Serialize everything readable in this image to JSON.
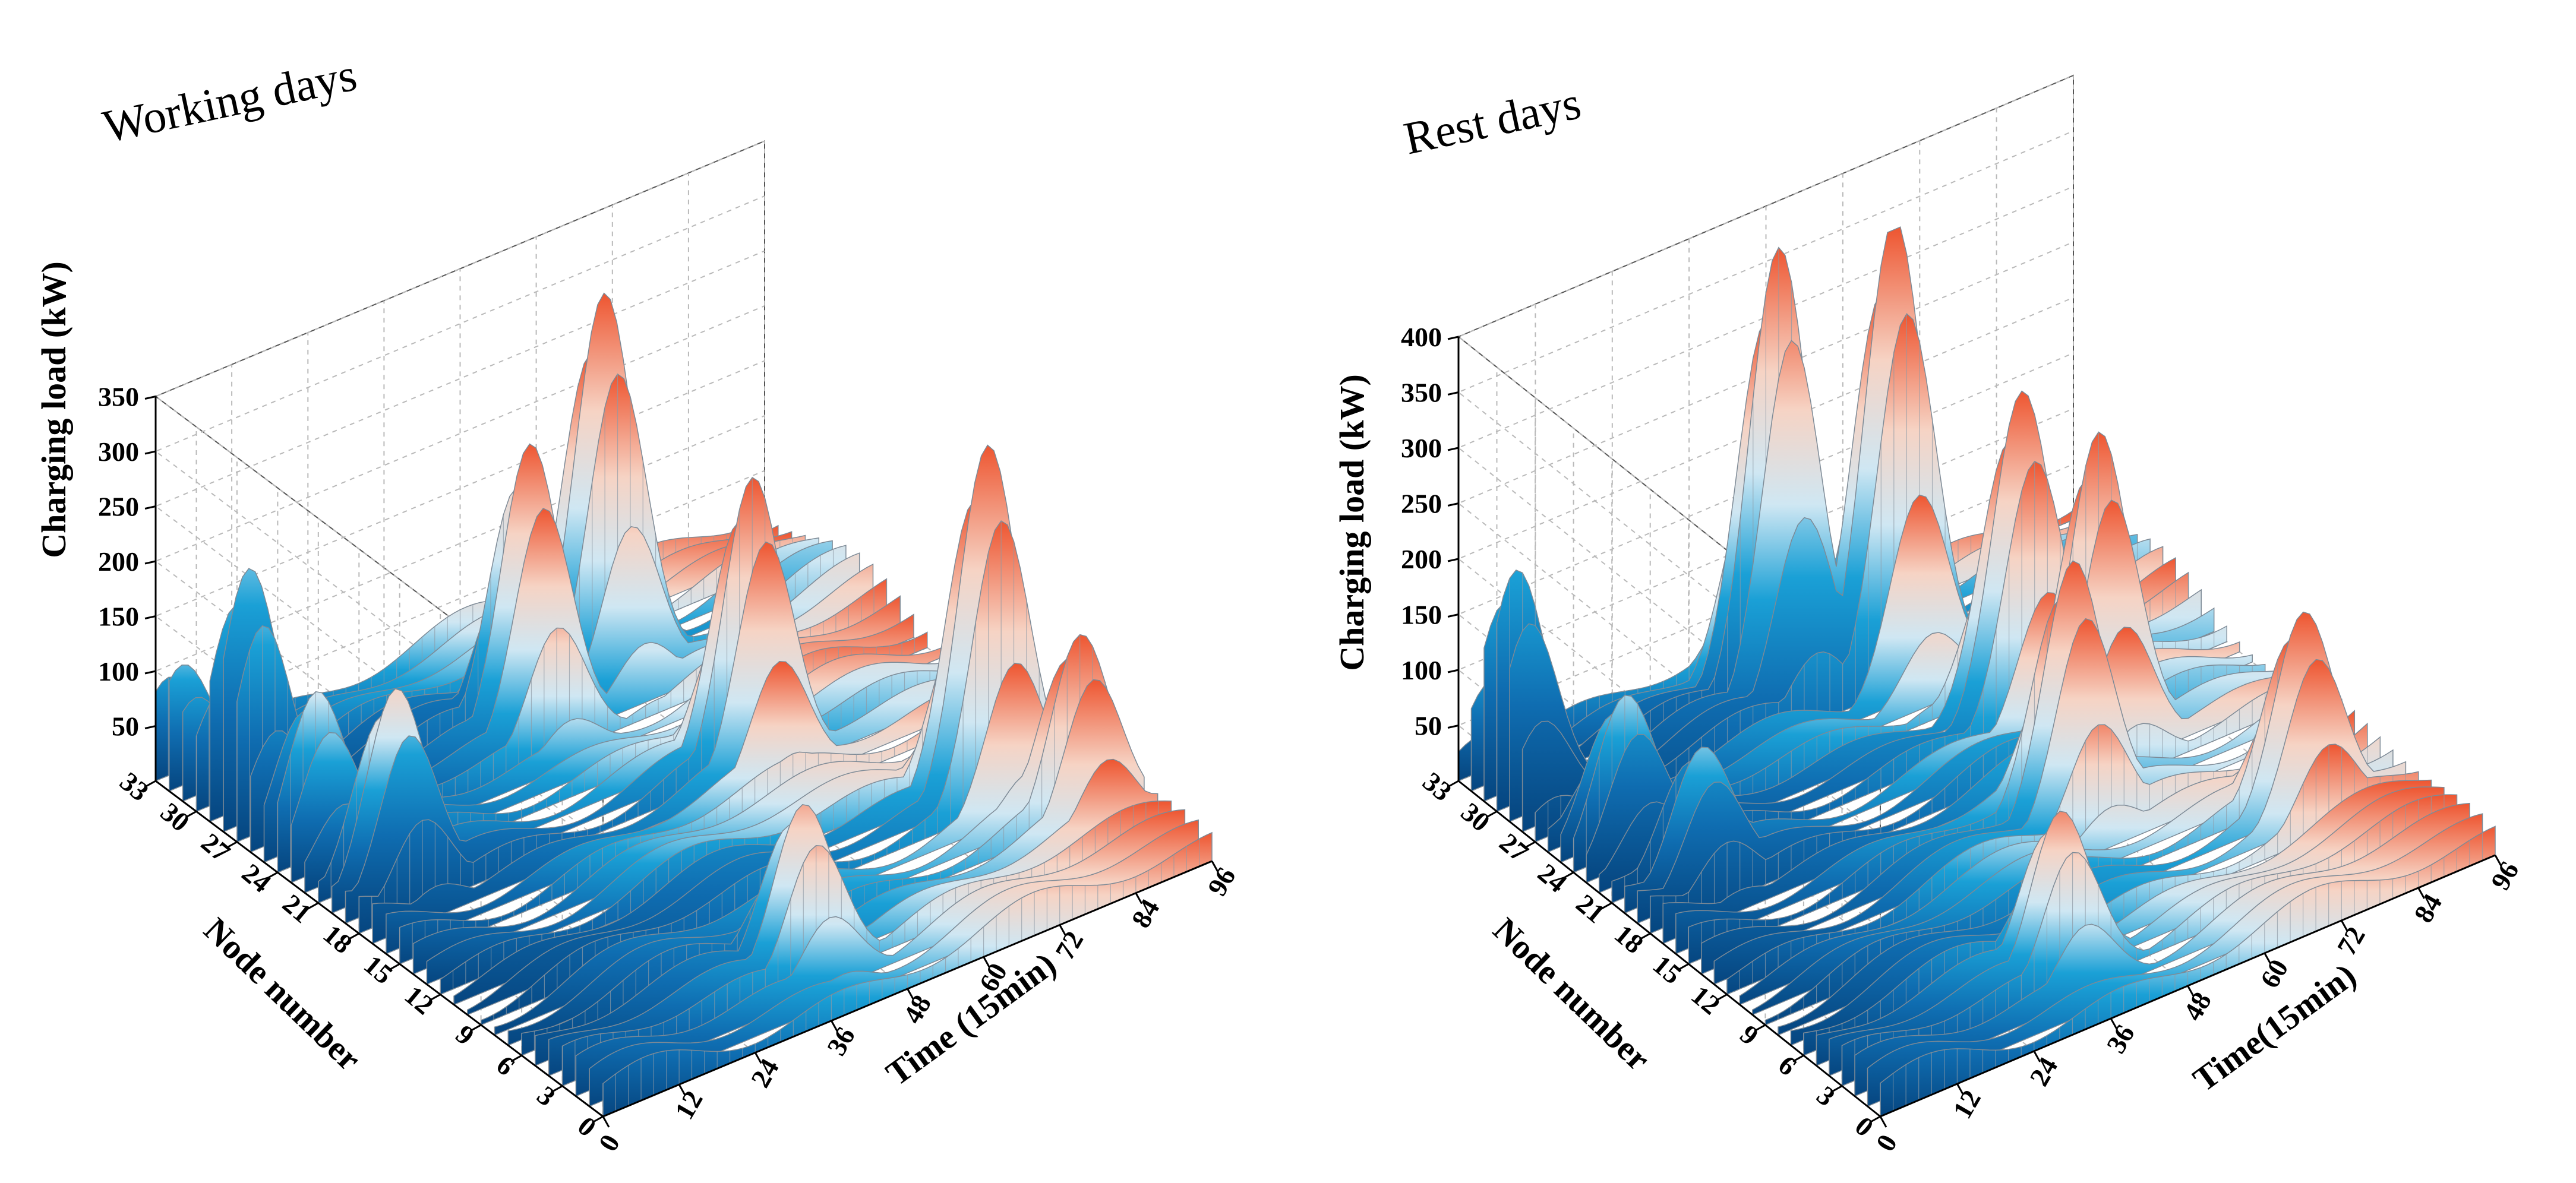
{
  "chart_data": [
    {
      "type": "surface",
      "title": "Working days",
      "xlabel": "Time (15min)",
      "ylabel": "Node number",
      "zlabel": "Charging load (kW)",
      "xlim": [
        0,
        96
      ],
      "ylim": [
        0,
        33
      ],
      "zlim": [
        0,
        350
      ],
      "xticks": [
        "0",
        "12",
        "24",
        "36",
        "48",
        "60",
        "72",
        "84",
        "96"
      ],
      "yticks": [
        "0",
        "3",
        "6",
        "9",
        "12",
        "15",
        "18",
        "21",
        "24",
        "27",
        "30",
        "33"
      ],
      "zticks": [
        "50",
        "100",
        "150",
        "200",
        "250",
        "300",
        "350"
      ],
      "grid": true,
      "surface_peaks": [
        {
          "node": 32,
          "time": 2,
          "load": 110
        },
        {
          "node": 28,
          "time": 4,
          "load": 230
        },
        {
          "node": 24,
          "time": 6,
          "load": 150
        },
        {
          "node": 20,
          "time": 10,
          "load": 180
        },
        {
          "node": 26,
          "time": 44,
          "load": 265
        },
        {
          "node": 28,
          "time": 60,
          "load": 345
        },
        {
          "node": 18,
          "time": 62,
          "load": 265
        },
        {
          "node": 10,
          "time": 82,
          "load": 320
        },
        {
          "node": 6,
          "time": 88,
          "load": 170
        },
        {
          "node": 4,
          "time": 40,
          "load": 150
        }
      ]
    },
    {
      "type": "surface",
      "title": "Rest days",
      "xlabel": "Time(15min)",
      "ylabel": "Node number",
      "zlabel": "Charging load (kW)",
      "xlim": [
        0,
        96
      ],
      "ylim": [
        0,
        33
      ],
      "zlim": [
        0,
        400
      ],
      "xticks": [
        "0",
        "12",
        "24",
        "36",
        "48",
        "60",
        "72",
        "84",
        "96"
      ],
      "yticks": [
        "0",
        "3",
        "6",
        "9",
        "12",
        "15",
        "18",
        "21",
        "24",
        "27",
        "30",
        "33"
      ],
      "zticks": [
        "50",
        "100",
        "150",
        "200",
        "250",
        "300",
        "350",
        "400"
      ],
      "grid": true,
      "surface_peaks": [
        {
          "node": 30,
          "time": 3,
          "load": 210
        },
        {
          "node": 24,
          "time": 8,
          "load": 140
        },
        {
          "node": 20,
          "time": 12,
          "load": 120
        },
        {
          "node": 30,
          "time": 44,
          "load": 400
        },
        {
          "node": 28,
          "time": 58,
          "load": 410
        },
        {
          "node": 22,
          "time": 66,
          "load": 290
        },
        {
          "node": 18,
          "time": 70,
          "load": 280
        },
        {
          "node": 14,
          "time": 58,
          "load": 230
        },
        {
          "node": 8,
          "time": 82,
          "load": 180
        },
        {
          "node": 4,
          "time": 36,
          "load": 150
        }
      ]
    }
  ]
}
